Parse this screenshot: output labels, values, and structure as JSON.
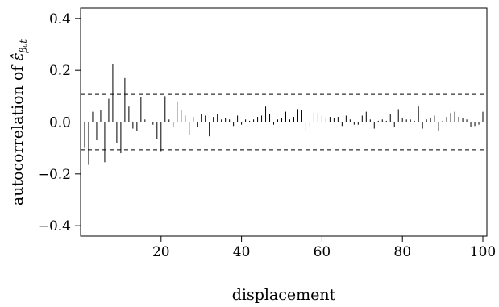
{
  "chart_data": {
    "type": "bar",
    "xlabel": "displacement",
    "ylabel": "autocorrelation of ",
    "ylabel_symbol": "ε̂",
    "ylabel_subscript": "β₀t",
    "xlim": [
      0,
      101
    ],
    "ylim": [
      -0.44,
      0.44
    ],
    "xticks": [
      20,
      40,
      60,
      80,
      100
    ],
    "yticks": [
      0.4,
      0.2,
      0.0,
      -0.2,
      -0.4
    ],
    "ytick_labels": [
      "0.4",
      "0.2",
      "0.0",
      "−0.2",
      "−0.4"
    ],
    "confidence_bounds": [
      0.107,
      -0.107
    ],
    "x": [
      1,
      2,
      3,
      4,
      5,
      6,
      7,
      8,
      9,
      10,
      11,
      12,
      13,
      14,
      15,
      16,
      17,
      18,
      19,
      20,
      21,
      22,
      23,
      24,
      25,
      26,
      27,
      28,
      29,
      30,
      31,
      32,
      33,
      34,
      35,
      36,
      37,
      38,
      39,
      40,
      41,
      42,
      43,
      44,
      45,
      46,
      47,
      48,
      49,
      50,
      51,
      52,
      53,
      54,
      55,
      56,
      57,
      58,
      59,
      60,
      61,
      62,
      63,
      64,
      65,
      66,
      67,
      68,
      69,
      70,
      71,
      72,
      73,
      74,
      75,
      76,
      77,
      78,
      79,
      80,
      81,
      82,
      83,
      84,
      85,
      86,
      87,
      88,
      89,
      90,
      91,
      92,
      93,
      94,
      95,
      96,
      97,
      98,
      99,
      100
    ],
    "values": [
      -0.1,
      -0.165,
      0.04,
      -0.07,
      0.045,
      -0.155,
      0.09,
      0.225,
      -0.08,
      -0.12,
      0.17,
      0.06,
      -0.025,
      -0.035,
      0.095,
      0.01,
      0.0,
      -0.01,
      -0.065,
      -0.115,
      0.1,
      0.01,
      -0.02,
      0.08,
      0.045,
      0.025,
      -0.05,
      0.02,
      -0.02,
      0.03,
      0.025,
      -0.055,
      0.02,
      0.03,
      0.01,
      0.015,
      0.01,
      -0.015,
      0.025,
      -0.01,
      0.01,
      0.005,
      0.01,
      0.02,
      0.025,
      0.06,
      0.03,
      -0.01,
      0.01,
      0.015,
      0.04,
      0.01,
      0.02,
      0.05,
      0.045,
      -0.035,
      -0.02,
      0.035,
      0.035,
      0.025,
      0.015,
      0.02,
      0.015,
      0.02,
      -0.015,
      0.025,
      0.01,
      -0.01,
      -0.01,
      0.025,
      0.04,
      0.01,
      -0.025,
      0.005,
      0.01,
      0.005,
      0.03,
      -0.02,
      0.05,
      0.015,
      0.01,
      0.01,
      0.005,
      0.06,
      -0.025,
      0.01,
      0.015,
      0.025,
      -0.035,
      0.005,
      0.02,
      0.035,
      0.04,
      0.02,
      0.015,
      0.01,
      -0.02,
      -0.015,
      -0.01,
      0.04
    ]
  }
}
